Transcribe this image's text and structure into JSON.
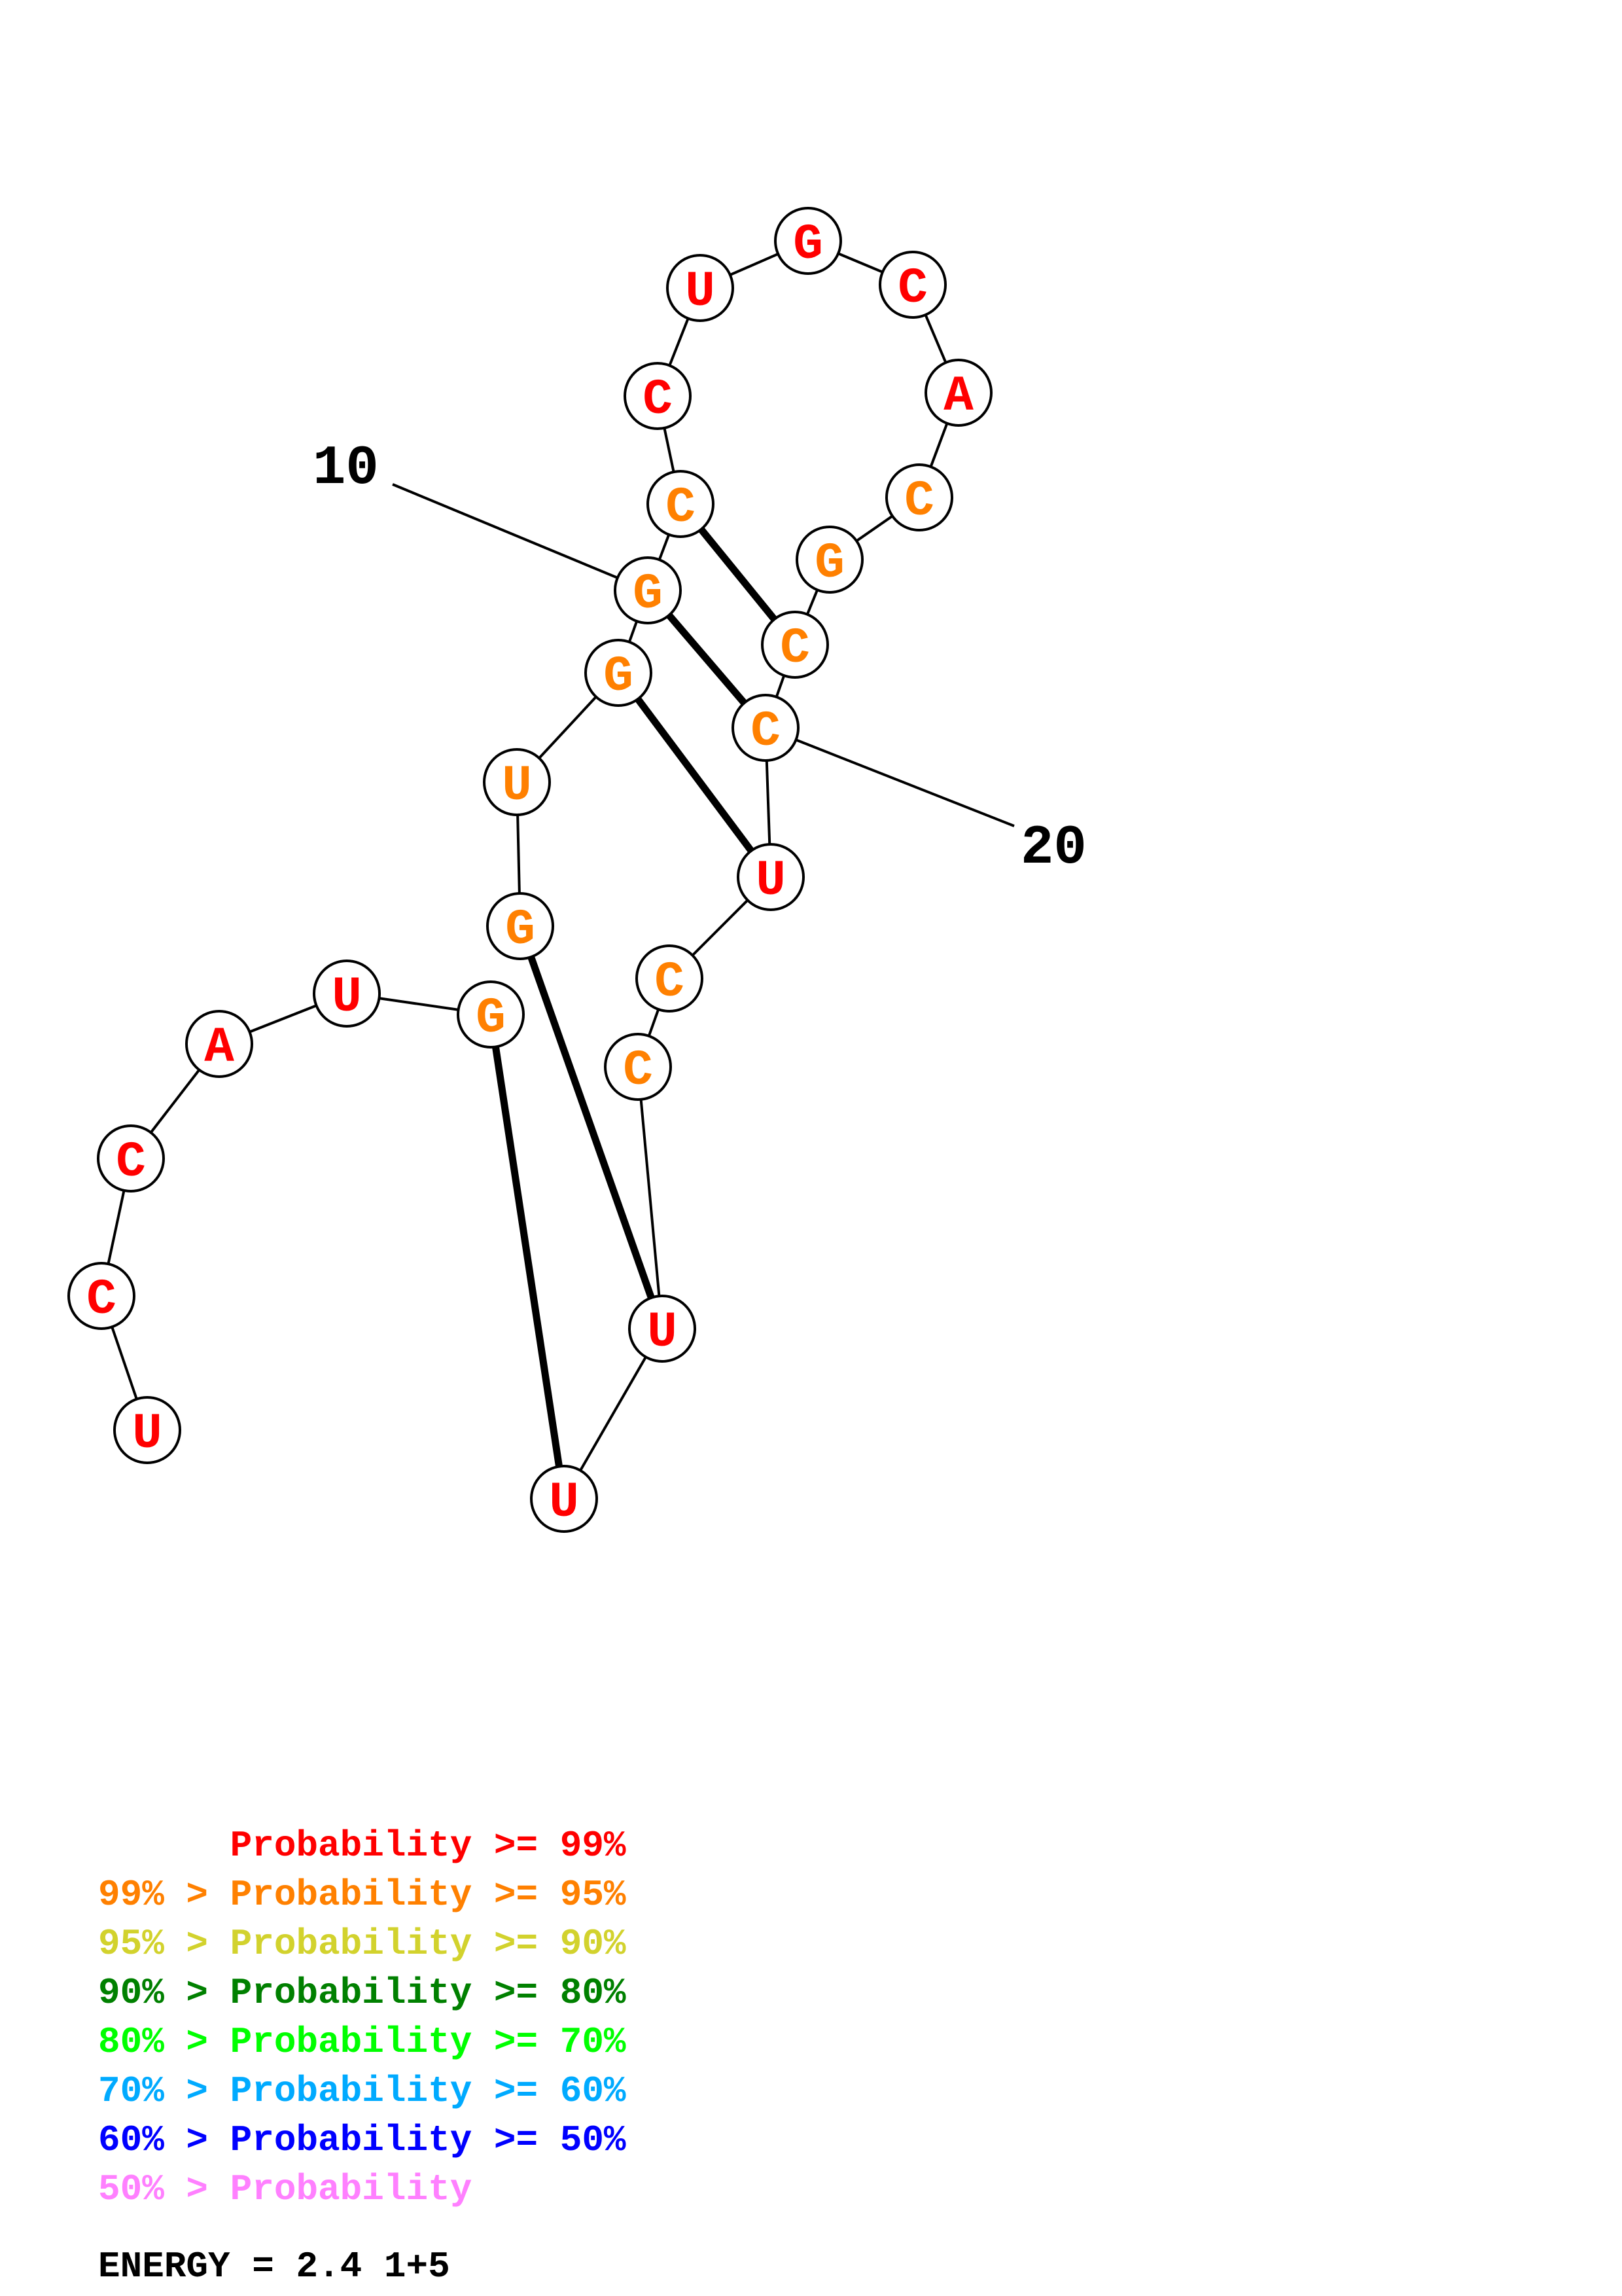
{
  "colors": {
    "p99": "#ff0000",
    "p95": "#ff8000",
    "p90": "#d2d22d",
    "p80": "#008000",
    "p70": "#00ff00",
    "p60": "#00aaff",
    "p50": "#0000ff",
    "plow": "#ff80ff"
  },
  "structure": {
    "sequence_1": "UCCAUGGUGGCCUGCACGCCUCCUU",
    "strand_break_after": 6,
    "pairs": [
      [
        6,
        25
      ],
      [
        7,
        24
      ],
      [
        9,
        21
      ],
      [
        10,
        20
      ],
      [
        11,
        19
      ]
    ],
    "nucleotides": [
      {
        "index": 1,
        "base": "U",
        "prob_class": "p99"
      },
      {
        "index": 2,
        "base": "C",
        "prob_class": "p99"
      },
      {
        "index": 3,
        "base": "C",
        "prob_class": "p99"
      },
      {
        "index": 4,
        "base": "A",
        "prob_class": "p99"
      },
      {
        "index": 5,
        "base": "U",
        "prob_class": "p99"
      },
      {
        "index": 6,
        "base": "G",
        "prob_class": "p95"
      },
      {
        "index": 7,
        "base": "G",
        "prob_class": "p95"
      },
      {
        "index": 8,
        "base": "U",
        "prob_class": "p95"
      },
      {
        "index": 9,
        "base": "G",
        "prob_class": "p95"
      },
      {
        "index": 10,
        "base": "G",
        "prob_class": "p95"
      },
      {
        "index": 11,
        "base": "C",
        "prob_class": "p95"
      },
      {
        "index": 12,
        "base": "C",
        "prob_class": "p99"
      },
      {
        "index": 13,
        "base": "U",
        "prob_class": "p99"
      },
      {
        "index": 14,
        "base": "G",
        "prob_class": "p99"
      },
      {
        "index": 15,
        "base": "C",
        "prob_class": "p99"
      },
      {
        "index": 16,
        "base": "A",
        "prob_class": "p99"
      },
      {
        "index": 17,
        "base": "C",
        "prob_class": "p95"
      },
      {
        "index": 18,
        "base": "G",
        "prob_class": "p95"
      },
      {
        "index": 19,
        "base": "C",
        "prob_class": "p95"
      },
      {
        "index": 20,
        "base": "C",
        "prob_class": "p95"
      },
      {
        "index": 21,
        "base": "U",
        "prob_class": "p99"
      },
      {
        "index": 22,
        "base": "C",
        "prob_class": "p95"
      },
      {
        "index": 23,
        "base": "C",
        "prob_class": "p95"
      },
      {
        "index": 24,
        "base": "U",
        "prob_class": "p99"
      },
      {
        "index": 25,
        "base": "U",
        "prob_class": "p99"
      }
    ],
    "number_labels": [
      {
        "text": "10",
        "nucleotide": 10
      },
      {
        "text": "20",
        "nucleotide": 20
      }
    ]
  },
  "legend": [
    {
      "text": "      Probability >= 99%",
      "color_key": "p99"
    },
    {
      "text": "99% > Probability >= 95%",
      "color_key": "p95"
    },
    {
      "text": "95% > Probability >= 90%",
      "color_key": "p90"
    },
    {
      "text": "90% > Probability >= 80%",
      "color_key": "p80"
    },
    {
      "text": "80% > Probability >= 70%",
      "color_key": "p70"
    },
    {
      "text": "70% > Probability >= 60%",
      "color_key": "p60"
    },
    {
      "text": "60% > Probability >= 50%",
      "color_key": "p50"
    },
    {
      "text": "50% > Probability",
      "color_key": "plow"
    }
  ],
  "energy": "ENERGY = 2.4  1+5"
}
